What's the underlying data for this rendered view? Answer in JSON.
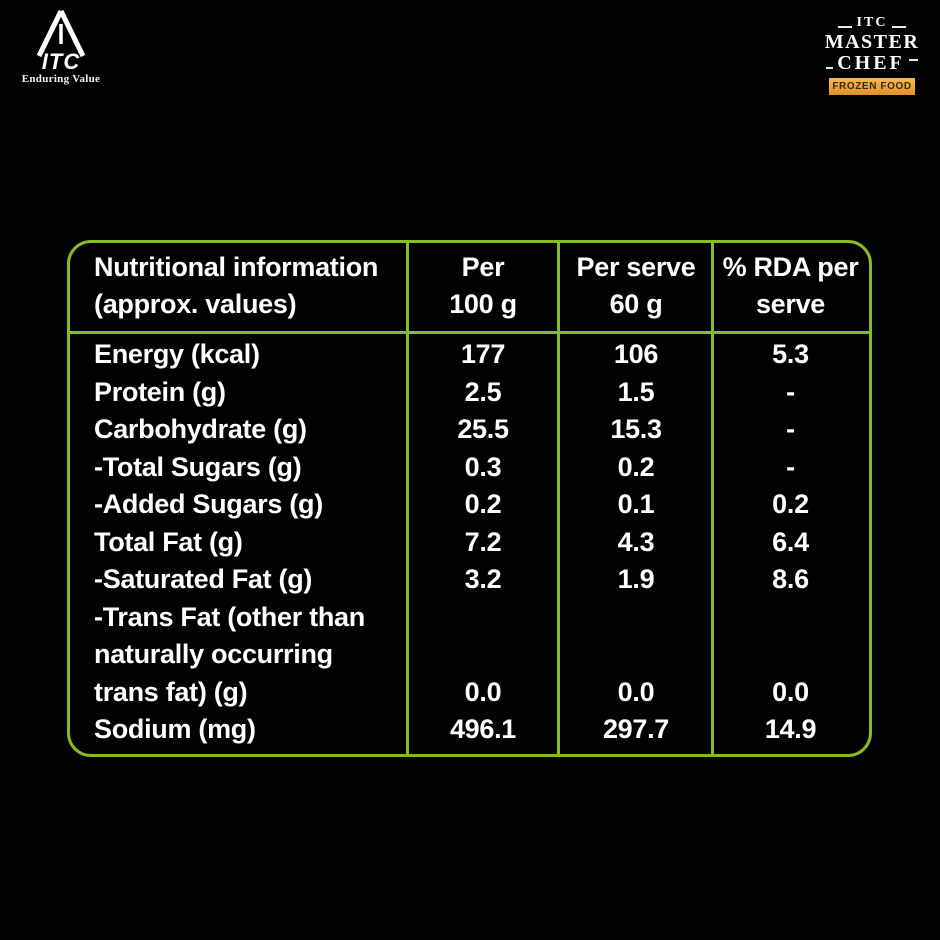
{
  "branding": {
    "itc_logo": {
      "monogram": "ITC",
      "tagline": "Enduring Value"
    },
    "master_chef": {
      "brand_small": "ITC",
      "name_line1": "MASTER",
      "name_line2": "CHEF",
      "ribbon": "FROZEN FOOD"
    }
  },
  "colors": {
    "background": "#020202",
    "table_border_green": "#86bd20",
    "text_white": "#ffffff",
    "ribbon_gold": "#eda23a",
    "ribbon_text": "#3a2a0e"
  },
  "table": {
    "headers": {
      "col1": "Nutritional information\n(approx. values)",
      "col2": "Per\n100 g",
      "col3": "Per serve\n60 g",
      "col4": "% RDA per\nserve"
    },
    "rows": [
      {
        "label": "Energy (kcal)",
        "per_100g": "177",
        "per_serve": "106",
        "rda_per_serve": "5.3"
      },
      {
        "label": "Protein (g)",
        "per_100g": "2.5",
        "per_serve": "1.5",
        "rda_per_serve": "-"
      },
      {
        "label": "Carbohydrate (g)",
        "per_100g": "25.5",
        "per_serve": "15.3",
        "rda_per_serve": "-"
      },
      {
        "label": "-Total Sugars (g)",
        "per_100g": "0.3",
        "per_serve": "0.2",
        "rda_per_serve": "-"
      },
      {
        "label": "-Added Sugars (g)",
        "per_100g": "0.2",
        "per_serve": "0.1",
        "rda_per_serve": "0.2"
      },
      {
        "label": "Total Fat (g)",
        "per_100g": "7.2",
        "per_serve": "4.3",
        "rda_per_serve": "6.4"
      },
      {
        "label": "-Saturated Fat (g)",
        "per_100g": "3.2",
        "per_serve": "1.9",
        "rda_per_serve": "8.6"
      },
      {
        "label": "-Trans Fat (other than\nnaturally occurring\ntrans fat) (g)",
        "per_100g": "0.0",
        "per_serve": "0.0",
        "rda_per_serve": "0.0"
      },
      {
        "label": "Sodium (mg)",
        "per_100g": "496.1",
        "per_serve": "297.7",
        "rda_per_serve": "14.9"
      }
    ]
  }
}
